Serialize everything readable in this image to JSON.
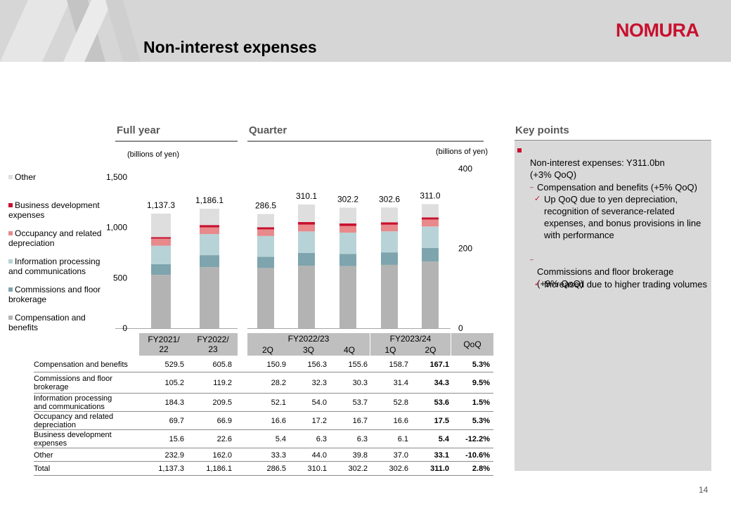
{
  "page": {
    "title": "Non-interest expenses",
    "logo_text": "NOMURA",
    "page_number": "14",
    "brand_color": "#c8102e"
  },
  "sections": {
    "full_year": "Full year",
    "quarter": "Quarter",
    "key_points": "Key points"
  },
  "units": {
    "left": "(billions of yen)",
    "right": "(billions of yen)"
  },
  "chart_data": [
    {
      "type": "bar",
      "stacked": true,
      "categories": [
        "FY2021/22",
        "FY2022/23"
      ],
      "ylim": [
        0,
        1500
      ],
      "yticks": [
        "1,500",
        "1,000",
        "500",
        "0"
      ],
      "series": [
        {
          "name": "Compensation and benefits",
          "color": "#b3b3b3",
          "values": [
            529.5,
            605.8
          ]
        },
        {
          "name": "Commissions and floor brokerage",
          "color": "#7ea4ae",
          "values": [
            105.2,
            119.2
          ]
        },
        {
          "name": "Information processing and communications",
          "color": "#b8d3d7",
          "values": [
            184.3,
            209.5
          ]
        },
        {
          "name": "Occupancy and related depreciation",
          "color": "#e8898b",
          "values": [
            69.7,
            66.9
          ]
        },
        {
          "name": "Business development expenses",
          "color": "#c8102e",
          "values": [
            15.6,
            22.6
          ]
        },
        {
          "name": "Other",
          "color": "#dedede",
          "values": [
            232.9,
            162.0
          ]
        }
      ],
      "total_labels": [
        "1,137.3",
        "1,186.1"
      ]
    },
    {
      "type": "bar",
      "stacked": true,
      "categories": [
        "2Q",
        "3Q",
        "4Q",
        "1Q",
        "2Q"
      ],
      "ylim": [
        0,
        400
      ],
      "yticks": [
        "400",
        "200",
        "0"
      ],
      "series": [
        {
          "name": "Compensation and benefits",
          "color": "#b3b3b3",
          "values": [
            150.9,
            156.3,
            155.6,
            158.7,
            167.1
          ]
        },
        {
          "name": "Commissions and floor brokerage",
          "color": "#7ea4ae",
          "values": [
            28.2,
            32.3,
            30.3,
            31.4,
            34.3
          ]
        },
        {
          "name": "Information processing and communications",
          "color": "#b8d3d7",
          "values": [
            52.1,
            54.0,
            53.7,
            52.8,
            53.6
          ]
        },
        {
          "name": "Occupancy and related depreciation",
          "color": "#e8898b",
          "values": [
            16.6,
            17.2,
            16.7,
            16.6,
            17.5
          ]
        },
        {
          "name": "Business development expenses",
          "color": "#c8102e",
          "values": [
            5.4,
            6.3,
            6.3,
            6.1,
            5.4
          ]
        },
        {
          "name": "Other",
          "color": "#dedede",
          "values": [
            33.3,
            44.0,
            39.8,
            37.0,
            33.1
          ]
        }
      ],
      "total_labels": [
        "286.5",
        "310.1",
        "302.2",
        "302.6",
        "311.0"
      ]
    }
  ],
  "legend": [
    {
      "label": "Other",
      "color": "#dedede"
    },
    {
      "label": "Business development expenses",
      "color": "#c8102e"
    },
    {
      "label": "Occupancy and related depreciation",
      "color": "#e8898b"
    },
    {
      "label": "Information processing and communications",
      "color": "#b8d3d7"
    },
    {
      "label": "Commissions and floor brokerage",
      "color": "#7ea4ae"
    },
    {
      "label": "Compensation and benefits",
      "color": "#b3b3b3"
    }
  ],
  "table": {
    "headers": {
      "fy1": "FY2021/\n22",
      "fy2": "FY2022/\n23",
      "group1": "FY2022/23",
      "group2": "FY2023/24",
      "q": [
        "2Q",
        "3Q",
        "4Q",
        "1Q",
        "2Q"
      ],
      "qoq": "QoQ"
    },
    "rows": [
      {
        "label": "Compensation and benefits",
        "fy": [
          "529.5",
          "605.8"
        ],
        "q": [
          "150.9",
          "156.3",
          "155.6",
          "158.7",
          "167.1"
        ],
        "qoq": "5.3%"
      },
      {
        "label": "Commissions and floor\nbrokerage",
        "fy": [
          "105.2",
          "119.2"
        ],
        "q": [
          "28.2",
          "32.3",
          "30.3",
          "31.4",
          "34.3"
        ],
        "qoq": "9.5%"
      },
      {
        "label": "Information processing\nand communications",
        "fy": [
          "184.3",
          "209.5"
        ],
        "q": [
          "52.1",
          "54.0",
          "53.7",
          "52.8",
          "53.6"
        ],
        "qoq": "1.5%"
      },
      {
        "label": "Occupancy and related\ndepreciation",
        "fy": [
          "69.7",
          "66.9"
        ],
        "q": [
          "16.6",
          "17.2",
          "16.7",
          "16.6",
          "17.5"
        ],
        "qoq": "5.3%"
      },
      {
        "label": "Business development\nexpenses",
        "fy": [
          "15.6",
          "22.6"
        ],
        "q": [
          "5.4",
          "6.3",
          "6.3",
          "6.1",
          "5.4"
        ],
        "qoq": "-12.2%"
      },
      {
        "label": "Other",
        "fy": [
          "232.9",
          "162.0"
        ],
        "q": [
          "33.3",
          "44.0",
          "39.8",
          "37.0",
          "33.1"
        ],
        "qoq": "-10.6%"
      },
      {
        "label": "Total",
        "fy": [
          "1,137.3",
          "1,186.1"
        ],
        "q": [
          "286.5",
          "310.1",
          "302.2",
          "302.6",
          "311.0"
        ],
        "qoq": "2.8%"
      }
    ]
  },
  "key_points": {
    "main": "Non-interest expenses: Y311.0bn\n(+3% QoQ)",
    "sub1": "Compensation and benefits (+5% QoQ)",
    "sub1_detail": "Up QoQ due to yen depreciation, recognition of severance-related expenses, and bonus provisions in line with performance",
    "sub2": "Commissions and floor brokerage\n(+9% QoQ)",
    "sub2_detail": "Increased due to higher trading volumes"
  }
}
